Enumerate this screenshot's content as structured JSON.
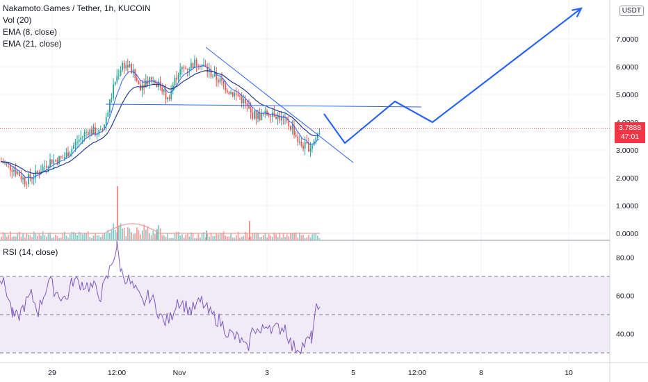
{
  "header": {
    "symbol": "Nakamoto.Games / Tether, 1h, KUCOIN",
    "indicators": [
      "Vol (20)",
      "EMA (8, close)",
      "EMA (21, close)"
    ],
    "rsi_label": "RSI (14, close)",
    "currency": "USDT"
  },
  "price_tag": {
    "price": "3.7888",
    "countdown": "47:01",
    "color": "#f23645"
  },
  "colors": {
    "up": "#26a69a",
    "down": "#ef5350",
    "ema8": "#2962ff",
    "ema21": "#2962ff",
    "drawing": "#2962ff",
    "rsi": "#7e57c2",
    "rsi_band": "#ede7f6",
    "volume_ma": "#ef9a9a"
  },
  "chart_data": [
    {
      "type": "candlestick",
      "title": "Nakamoto.Games / Tether, 1h, KUCOIN",
      "yticks": [
        "0.0000",
        "1.0000",
        "2.0000",
        "3.0000",
        "4.0000",
        "5.0000",
        "6.0000",
        "7.0000"
      ],
      "xticks": [
        "29",
        "12:00",
        "Nov",
        "3",
        "5",
        "12:00",
        "8",
        "10"
      ],
      "ylim": [
        0,
        8.2
      ],
      "current_price": 3.7888,
      "price_path": [
        [
          0,
          2.6
        ],
        [
          20,
          2.3
        ],
        [
          35,
          1.9
        ],
        [
          50,
          2.1
        ],
        [
          70,
          2.6
        ],
        [
          90,
          2.7
        ],
        [
          110,
          3.3
        ],
        [
          125,
          3.7
        ],
        [
          145,
          3.6
        ],
        [
          155,
          4.5
        ],
        [
          165,
          5.5
        ],
        [
          175,
          6.1
        ],
        [
          185,
          6.0
        ],
        [
          200,
          5.3
        ],
        [
          215,
          5.6
        ],
        [
          230,
          5.3
        ],
        [
          240,
          4.8
        ],
        [
          255,
          5.8
        ],
        [
          270,
          6.0
        ],
        [
          285,
          6.2
        ],
        [
          300,
          5.8
        ],
        [
          315,
          5.5
        ],
        [
          330,
          5.1
        ],
        [
          345,
          4.9
        ],
        [
          360,
          4.3
        ],
        [
          375,
          4.2
        ],
        [
          390,
          4.4
        ],
        [
          405,
          4.1
        ],
        [
          420,
          3.8
        ],
        [
          430,
          3.2
        ],
        [
          445,
          3.1
        ],
        [
          455,
          3.5
        ],
        [
          460,
          3.79
        ]
      ],
      "volume_spikes": [
        [
          168,
          1.95
        ],
        [
          358,
          0.7
        ],
        [
          296,
          0.35
        ],
        [
          225,
          0.4
        ]
      ],
      "drawings": {
        "downtrend_line": [
          [
            296,
            6.7
          ],
          [
            508,
            2.55
          ]
        ],
        "horizontal_line": [
          [
            152,
            4.65
          ],
          [
            606,
            4.55
          ]
        ],
        "projection": [
          [
            466,
            4.3
          ],
          [
            496,
            3.25
          ],
          [
            568,
            4.75
          ],
          [
            622,
            4.0
          ],
          [
            836,
            8.1
          ]
        ]
      }
    },
    {
      "type": "line",
      "title": "RSI (14, close)",
      "yticks": [
        "40.00",
        "60.00",
        "80.00"
      ],
      "ylim": [
        27,
        90
      ],
      "bands": [
        30,
        50,
        70
      ],
      "values": [
        [
          0,
          70
        ],
        [
          10,
          62
        ],
        [
          18,
          50
        ],
        [
          25,
          48
        ],
        [
          35,
          55
        ],
        [
          45,
          60
        ],
        [
          55,
          52
        ],
        [
          70,
          68
        ],
        [
          80,
          62
        ],
        [
          95,
          58
        ],
        [
          105,
          68
        ],
        [
          120,
          66
        ],
        [
          135,
          64
        ],
        [
          145,
          60
        ],
        [
          155,
          70
        ],
        [
          168,
          86
        ],
        [
          175,
          72
        ],
        [
          185,
          68
        ],
        [
          195,
          62
        ],
        [
          205,
          56
        ],
        [
          215,
          60
        ],
        [
          225,
          54
        ],
        [
          235,
          46
        ],
        [
          245,
          48
        ],
        [
          255,
          58
        ],
        [
          265,
          55
        ],
        [
          275,
          52
        ],
        [
          290,
          57
        ],
        [
          300,
          51
        ],
        [
          315,
          47
        ],
        [
          330,
          40
        ],
        [
          345,
          37
        ],
        [
          355,
          31
        ],
        [
          365,
          44
        ],
        [
          375,
          40
        ],
        [
          385,
          46
        ],
        [
          395,
          42
        ],
        [
          410,
          44
        ],
        [
          420,
          33
        ],
        [
          430,
          33
        ],
        [
          440,
          35
        ],
        [
          448,
          38
        ],
        [
          455,
          52
        ],
        [
          460,
          54
        ]
      ]
    }
  ]
}
